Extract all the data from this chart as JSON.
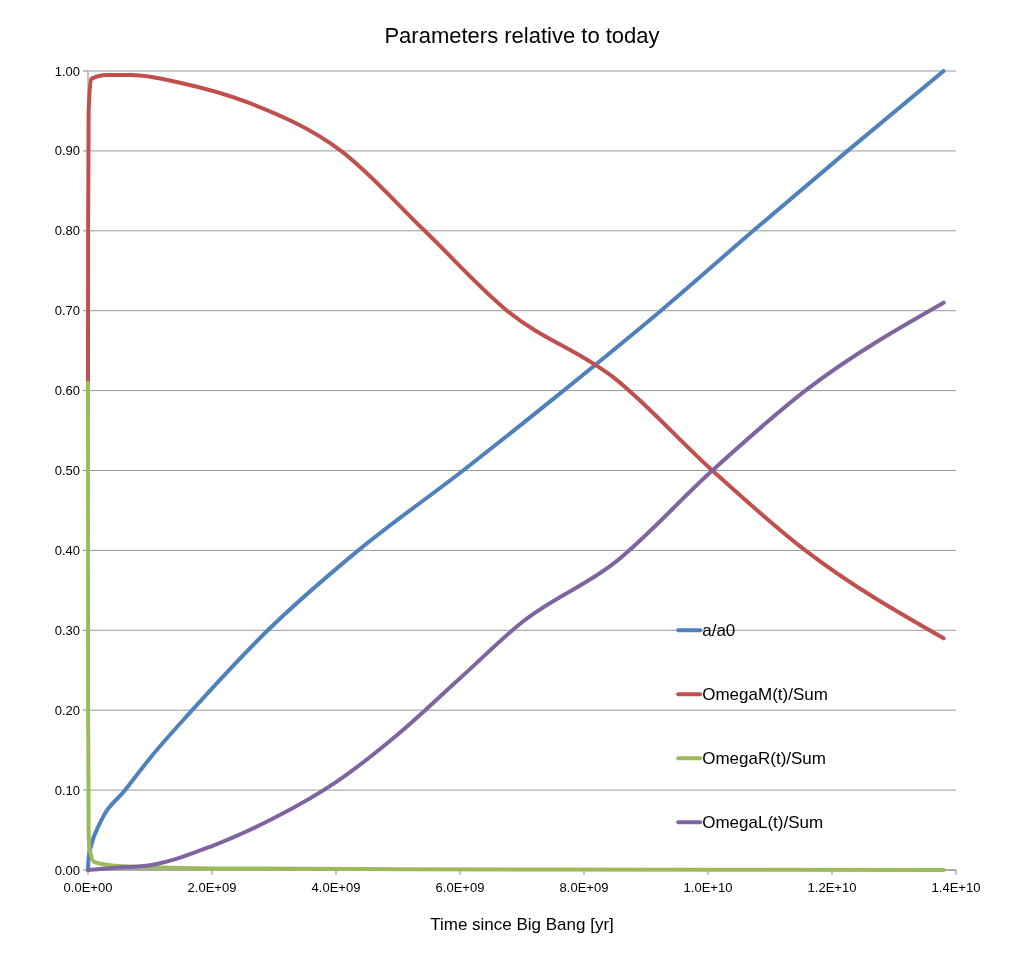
{
  "chart_data": {
    "type": "line",
    "title": "Parameters relative to today",
    "xlabel": "Time since Big Bang [yr]",
    "xlim": [
      0,
      14000000000
    ],
    "xticks": [
      {
        "value": 0,
        "label": "0.0E+00"
      },
      {
        "value": 2000000000,
        "label": "2.0E+09"
      },
      {
        "value": 4000000000,
        "label": "4.0E+09"
      },
      {
        "value": 6000000000,
        "label": "6.0E+09"
      },
      {
        "value": 8000000000,
        "label": "8.0E+09"
      },
      {
        "value": 10000000000,
        "label": "1.0E+10"
      },
      {
        "value": 12000000000,
        "label": "1.2E+10"
      },
      {
        "value": 14000000000,
        "label": "1.4E+10"
      }
    ],
    "ylim": [
      0,
      1
    ],
    "yticks": [
      {
        "value": 0,
        "label": "0.00"
      },
      {
        "value": 0.1,
        "label": "0.10"
      },
      {
        "value": 0.2,
        "label": "0.20"
      },
      {
        "value": 0.3,
        "label": "0.30"
      },
      {
        "value": 0.4,
        "label": "0.40"
      },
      {
        "value": 0.5,
        "label": "0.50"
      },
      {
        "value": 0.6,
        "label": "0.60"
      },
      {
        "value": 0.7,
        "label": "0.70"
      },
      {
        "value": 0.8,
        "label": "0.80"
      },
      {
        "value": 0.9,
        "label": "0.90"
      },
      {
        "value": 1,
        "label": "1.00"
      }
    ],
    "grid": "y",
    "legend": "bottom right",
    "marker": "none",
    "line_style": "solid",
    "series": [
      {
        "name": "a/a0",
        "color": "#4f81bd",
        "x": [
          0,
          10000000,
          50000000,
          200000000,
          600000000,
          1000000000,
          1680000000,
          2900000000,
          4360000000,
          6050000000,
          7670000000,
          9240000000,
          10730000000,
          12250000000,
          13800000000
        ],
        "values": [
          0,
          0.015,
          0.03,
          0.06,
          0.1,
          0.14,
          0.2,
          0.3,
          0.4,
          0.5,
          0.6,
          0.7,
          0.8,
          0.9,
          1
        ]
      },
      {
        "name": "OmegaM(t)/Sum",
        "color": "#c0504d",
        "x": [
          0,
          2000000,
          10000000,
          50000000,
          300000000,
          700000000,
          1500000000,
          2600000000,
          4080000000,
          5430000000,
          6760000000,
          8500000000,
          10070000000,
          11570000000,
          13800000000
        ],
        "values": [
          0.61,
          0.8,
          0.95,
          0.99,
          0.995,
          0.995,
          0.985,
          0.96,
          0.9,
          0.8,
          0.7,
          0.615,
          0.5,
          0.4,
          0.29
        ]
      },
      {
        "name": "OmegaR(t)/Sum",
        "color": "#9bbb59",
        "x": [
          0,
          2000000,
          10000000,
          20000000,
          100000000,
          500000000,
          2000000000,
          5000000000,
          13800000000
        ],
        "values": [
          0.61,
          0.2,
          0.05,
          0.03,
          0.01,
          0.005,
          0.002,
          0.001,
          0
        ]
      },
      {
        "name": "OmegaL(t)/Sum",
        "color": "#8064a2",
        "x": [
          0,
          500000000,
          1000000000,
          2000000000,
          3000000000,
          4000000000,
          5000000000,
          6000000000,
          7000000000,
          8500000000,
          10070000000,
          11570000000,
          13800000000
        ],
        "values": [
          0,
          0.003,
          0.006,
          0.03,
          0.065,
          0.11,
          0.17,
          0.24,
          0.31,
          0.385,
          0.5,
          0.6,
          0.71
        ]
      }
    ]
  }
}
